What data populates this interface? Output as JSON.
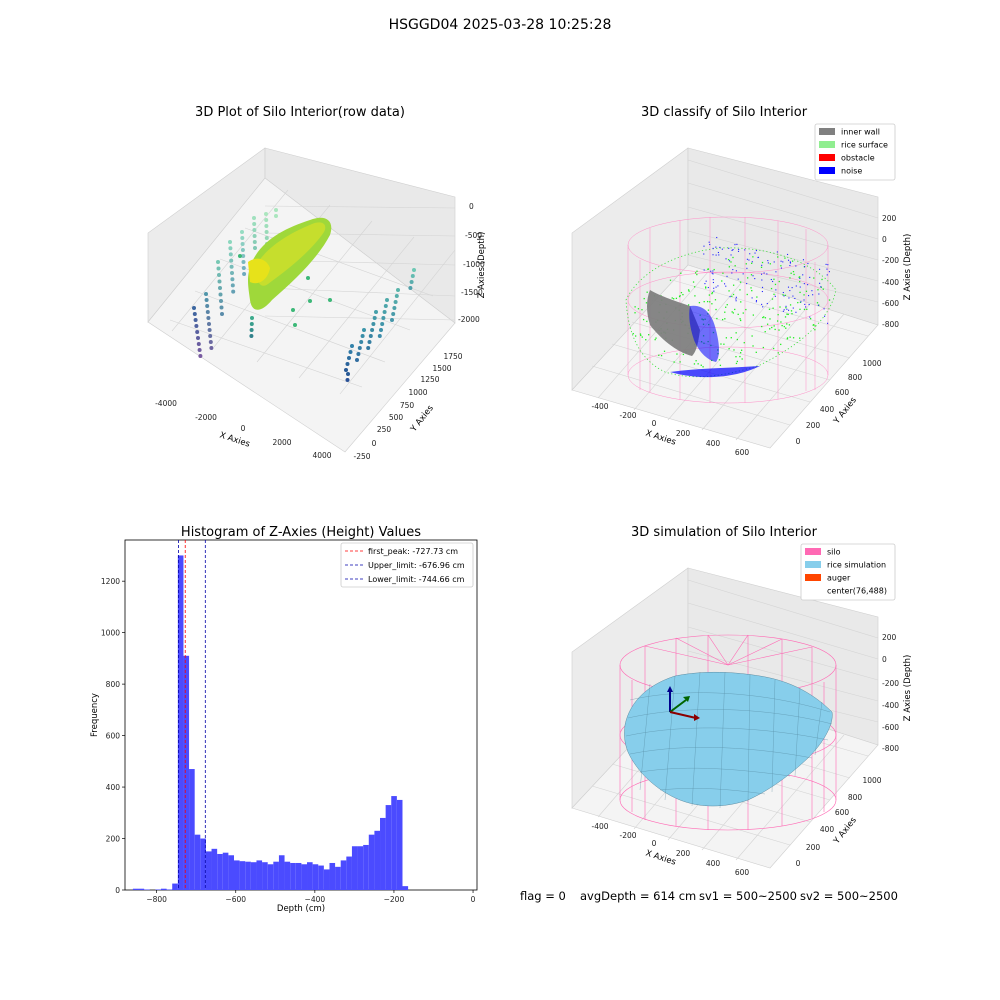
{
  "figure": {
    "suptitle": "HSGGD04 2025-03-28 10:25:28",
    "footer": {
      "flag": "flag = 0",
      "avg_depth": "avgDepth = 614 cm",
      "sv1": "sv1 = 500~2500",
      "sv2": "sv2 = 500~2500"
    }
  },
  "colors": {
    "inner_wall": "#808080",
    "rice_surface": "#90ee90",
    "obstacle": "#ff0000",
    "noise": "#0000ff",
    "silo": "#ff69b4",
    "rice_simulation": "#87ceeb",
    "auger": "#ff4500",
    "hist_bar": "#4b4bff"
  },
  "chart_data": [
    {
      "type": "scatter3d",
      "title": "3D Plot of Silo Interior(row data)",
      "xlabel": "X Axies",
      "ylabel": "Y Axies",
      "zlabel": "Z Axies (Depth)",
      "x_ticks": [
        "-4000",
        "-2000",
        "0",
        "2000",
        "4000"
      ],
      "y_ticks": [
        "-250",
        "0",
        "250",
        "500",
        "750",
        "1000",
        "1250",
        "1500",
        "1750"
      ],
      "z_ticks": [
        "-2000",
        "-1500",
        "-1000",
        "-500",
        "0"
      ]
    },
    {
      "type": "scatter3d",
      "title": "3D classify of Silo Interior",
      "xlabel": "X Axies",
      "ylabel": "Y Axies",
      "zlabel": "Z Axies (Depth)",
      "x_ticks": [
        "-400",
        "-200",
        "0",
        "200",
        "400",
        "600"
      ],
      "y_ticks": [
        "0",
        "200",
        "400",
        "600",
        "800",
        "1000"
      ],
      "z_ticks": [
        "-800",
        "-600",
        "-400",
        "-200",
        "0",
        "200"
      ],
      "legend": [
        "inner wall",
        "rice surface",
        "obstacle",
        "noise"
      ],
      "legend_position": "top-right"
    },
    {
      "type": "bar",
      "title": "Histogram of Z-Axies (Height) Values",
      "xlabel": "Depth (cm)",
      "ylabel": "Frequency",
      "xlim": [
        -880,
        10
      ],
      "ylim": [
        0,
        1360
      ],
      "x_ticks": [
        -800,
        -600,
        -400,
        -200,
        0
      ],
      "x_tick_labels": [
        "−800",
        "−600",
        "−400",
        "−200",
        "0"
      ],
      "y_ticks": [
        0,
        200,
        400,
        600,
        800,
        1000,
        1200
      ],
      "y_tick_labels": [
        "0",
        "200",
        "400",
        "600",
        "800",
        "1000",
        "1200"
      ],
      "bin_start": -860,
      "bin_width": 14.2,
      "values": [
        5,
        5,
        2,
        0,
        2,
        5,
        2,
        25,
        1300,
        910,
        470,
        215,
        200,
        150,
        160,
        140,
        145,
        135,
        115,
        112,
        110,
        108,
        115,
        108,
        100,
        110,
        135,
        110,
        105,
        105,
        100,
        108,
        100,
        95,
        80,
        105,
        90,
        115,
        130,
        170,
        170,
        175,
        215,
        230,
        280,
        330,
        365,
        350,
        15
      ],
      "lines": [
        {
          "label": "first_peak: -727.73 cm",
          "x": -727.73,
          "color": "#ff0000"
        },
        {
          "label": "Upper_limit: -676.96 cm",
          "x": -676.96,
          "color": "#0000aa"
        },
        {
          "label": "Lower_limit: -744.66 cm",
          "x": -744.66,
          "color": "#0000aa"
        }
      ],
      "legend_position": "top-right"
    },
    {
      "type": "surface3d",
      "title": "3D simulation of Silo Interior",
      "xlabel": "X Axies",
      "ylabel": "Y Axies",
      "zlabel": "Z Axies (Depth)",
      "x_ticks": [
        "-400",
        "-200",
        "0",
        "200",
        "400",
        "600"
      ],
      "y_ticks": [
        "0",
        "200",
        "400",
        "600",
        "800",
        "1000"
      ],
      "z_ticks": [
        "-800",
        "-600",
        "-400",
        "-200",
        "0",
        "200"
      ],
      "legend": [
        "silo",
        "rice simulation",
        "auger",
        "center(76,488)"
      ],
      "legend_position": "top-right"
    }
  ]
}
